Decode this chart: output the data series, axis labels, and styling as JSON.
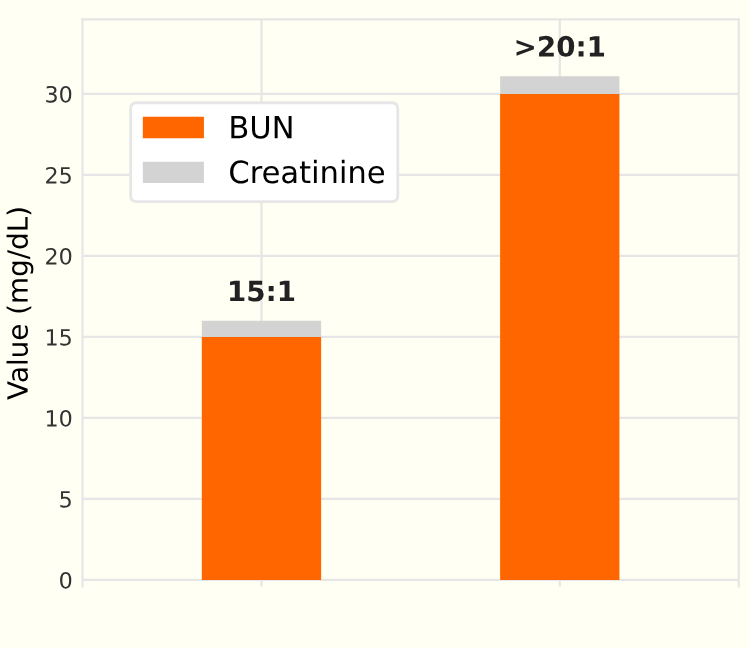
{
  "chart_data": {
    "type": "bar",
    "ylabel": "Value (mg/dL)",
    "categories": [
      null,
      null
    ],
    "stacked": true,
    "series": [
      {
        "name": "BUN",
        "color": "#ff6600",
        "values": [
          15,
          30
        ]
      },
      {
        "name": "Creatinine",
        "color": "#d3d3d3",
        "values": [
          1.0,
          1.1
        ]
      }
    ],
    "annotations": [
      {
        "text": "15:1",
        "y": 16.0
      },
      {
        "text": ">20:1",
        "y": 31.1
      }
    ],
    "ylim": [
      -0.4,
      34.6
    ],
    "yticks": [
      0,
      5,
      10,
      15,
      20,
      25,
      30
    ],
    "grid": true,
    "legend": "top left"
  }
}
